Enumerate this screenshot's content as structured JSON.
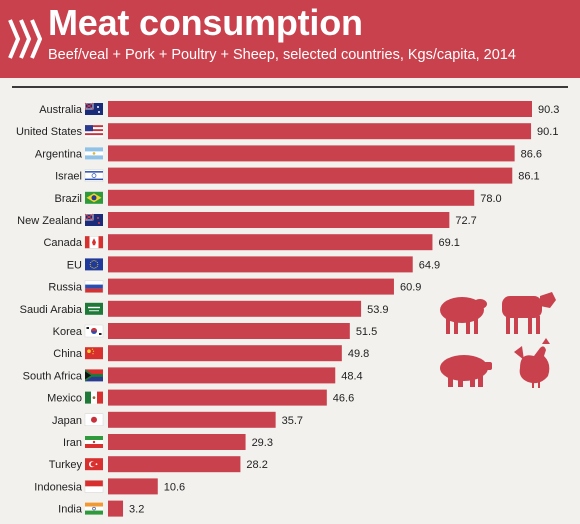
{
  "header": {
    "title": "Meat consumption",
    "subtitle": "Beef/veal + Pork + Poultry + Sheep, selected countries, Kgs/capita, 2014"
  },
  "colors": {
    "accent": "#c9414d",
    "bar": "#c9414d",
    "background": "#f2f1ee"
  },
  "icons": [
    "oecd-logo-icon",
    "sheep-icon",
    "cow-icon",
    "pig-icon",
    "chicken-icon"
  ],
  "chart_data": {
    "type": "bar",
    "orientation": "horizontal",
    "title": "Meat consumption",
    "subtitle": "Beef/veal + Pork + Poultry + Sheep, selected countries, Kgs/capita, 2014",
    "categories": [
      "Australia",
      "United States",
      "Argentina",
      "Israel",
      "Brazil",
      "New Zealand",
      "Canada",
      "EU",
      "Russia",
      "Saudi Arabia",
      "Korea",
      "China",
      "South Africa",
      "Mexico",
      "Japan",
      "Iran",
      "Turkey",
      "Indonesia",
      "India"
    ],
    "values": [
      90.3,
      90.1,
      86.6,
      86.1,
      78.0,
      72.7,
      69.1,
      64.9,
      60.9,
      53.9,
      51.5,
      49.8,
      48.4,
      46.6,
      35.7,
      29.3,
      28.2,
      10.6,
      3.2
    ],
    "value_labels": [
      "90.3",
      "90.1",
      "86.6",
      "86.1",
      "78.0",
      "72.7",
      "69.1",
      "64.9",
      "60.9",
      "53.9",
      "51.5",
      "49.8",
      "48.4",
      "46.6",
      "35.7",
      "29.3",
      "28.2",
      "10.6",
      "3.2"
    ],
    "flags": [
      "australia-flag-icon",
      "united-states-flag-icon",
      "argentina-flag-icon",
      "israel-flag-icon",
      "brazil-flag-icon",
      "new-zealand-flag-icon",
      "canada-flag-icon",
      "eu-flag-icon",
      "russia-flag-icon",
      "saudi-arabia-flag-icon",
      "korea-flag-icon",
      "china-flag-icon",
      "south-africa-flag-icon",
      "mexico-flag-icon",
      "japan-flag-icon",
      "iran-flag-icon",
      "turkey-flag-icon",
      "indonesia-flag-icon",
      "india-flag-icon"
    ],
    "xlim": [
      0,
      100
    ],
    "grid": false,
    "legend": "none"
  }
}
